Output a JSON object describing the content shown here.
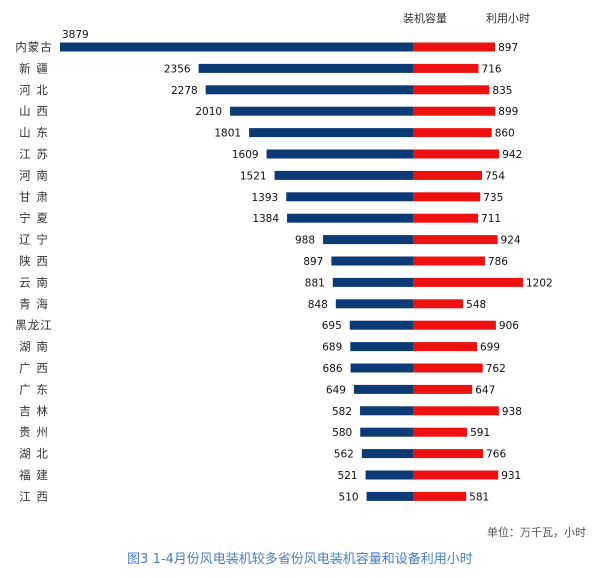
{
  "header": {
    "left_series_label": "装机容量",
    "right_series_label": "利用小时"
  },
  "footer": {
    "unit_note": "单位：万千瓦，小时",
    "caption": "图3  1-4月份风电装机较多省份风电装机容量和设备利用小时"
  },
  "chart_data": {
    "type": "bar",
    "orientation": "horizontal",
    "layout_style": "butterfly",
    "categories": [
      "内蒙古",
      "新 疆",
      "河 北",
      "山 西",
      "山 东",
      "江 苏",
      "河 南",
      "甘 肃",
      "宁 夏",
      "辽 宁",
      "陕 西",
      "云 南",
      "青 海",
      "黑龙江",
      "湖 南",
      "广 西",
      "广 东",
      "吉 林",
      "贵 州",
      "湖 北",
      "福 建",
      "江 西"
    ],
    "series": [
      {
        "name": "装机容量",
        "color": "#0b3a74",
        "values": [
          3879,
          2356,
          2278,
          2010,
          1801,
          1609,
          1521,
          1393,
          1384,
          988,
          897,
          881,
          848,
          695,
          689,
          686,
          649,
          582,
          580,
          562,
          521,
          510
        ]
      },
      {
        "name": "利用小时",
        "color": "#ee1111",
        "values": [
          897,
          716,
          835,
          899,
          860,
          942,
          754,
          735,
          711,
          924,
          786,
          1202,
          548,
          906,
          699,
          762,
          647,
          938,
          591,
          766,
          931,
          581
        ]
      }
    ],
    "title": "",
    "xlabel": "",
    "ylabel": "",
    "unit_note": "单位：万千瓦，小时",
    "legend": "top-right column headers",
    "grid": false
  }
}
